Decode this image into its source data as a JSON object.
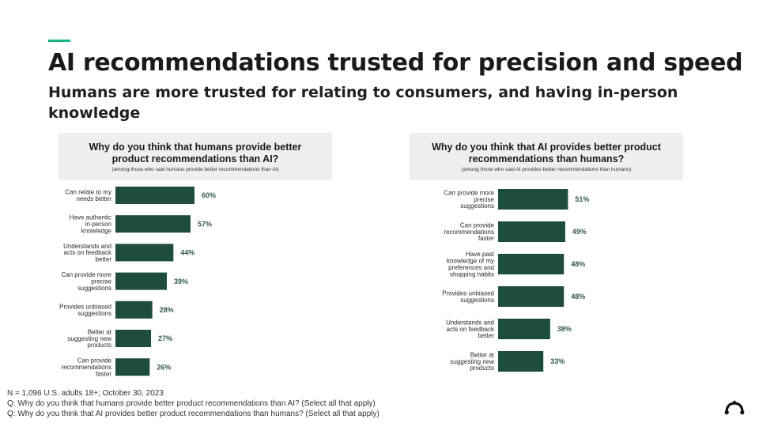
{
  "slide": {
    "title": "AI recommendations trusted for precision and speed",
    "subtitle": "Humans are more trusted for relating to consumers, and having in-person knowledge"
  },
  "chart_data": [
    {
      "type": "bar",
      "orientation": "horizontal",
      "title": "Why do you think that humans provide better product recommendations than AI?",
      "subtitle": "(among those who said humans provide better recommendations than AI)",
      "categories": [
        "Can relate to my needs better",
        "Have authentic in-person knowledge",
        "Understands and acts on feedback better",
        "Can provide more precise suggestions",
        "Provides unbiased suggestions",
        "Better at suggesting new products",
        "Can provide recommendations faster"
      ],
      "values": [
        60,
        57,
        44,
        39,
        28,
        27,
        26
      ],
      "value_labels": [
        "60%",
        "57%",
        "44%",
        "39%",
        "28%",
        "27%",
        "26%"
      ],
      "unit": "%",
      "xlim": [
        0,
        100
      ],
      "bar_color": "#1f4d3c",
      "grid": false
    },
    {
      "type": "bar",
      "orientation": "horizontal",
      "title": "Why do you think that AI provides better product recommendations than humans?",
      "subtitle": "(among those who said AI provides better recommendations than humans)",
      "categories": [
        "Can provide more precise suggestions",
        "Can provide recommendations faster",
        "Have past knowledge of my preferences and shopping habits",
        "Provides unbiased suggestions",
        "Understands and acts on feedback better",
        "Better at suggesting new products"
      ],
      "values": [
        51,
        49,
        48,
        48,
        38,
        33
      ],
      "value_labels": [
        "51%",
        "49%",
        "48%",
        "48%",
        "38%",
        "33%"
      ],
      "unit": "%",
      "xlim": [
        0,
        100
      ],
      "bar_color": "#1f4d3c",
      "grid": false
    }
  ],
  "footer": {
    "sample": "N = 1,096 U.S. adults 18+; October 30, 2023",
    "question_1": "Q: Why do you think that humans provide better product recommendations than AI? (Select all that apply)",
    "question_2": "Q: Why do you think that AI provides better product recommendations than humans? (Select all that apply)"
  },
  "colors": {
    "accent": "#1db38a",
    "bar": "#1f4d3c",
    "header_bg": "#efefef"
  },
  "icons": {
    "brand_logo": "surveymonkey-logo-icon"
  }
}
